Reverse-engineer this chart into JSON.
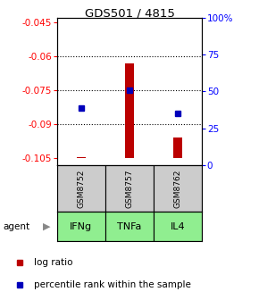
{
  "title": "GDS501 / 4815",
  "categories": [
    "IFNg",
    "TNFa",
    "IL4"
  ],
  "gsm_labels": [
    "GSM8752",
    "GSM8757",
    "GSM8762"
  ],
  "bar_bottoms": [
    -0.105,
    -0.105,
    -0.105
  ],
  "bar_tops": [
    -0.1045,
    -0.063,
    -0.096
  ],
  "blue_y": [
    -0.083,
    -0.075,
    -0.085
  ],
  "ylim_left": [
    -0.108,
    -0.043
  ],
  "ylim_right": [
    0,
    100
  ],
  "left_ticks": [
    -0.045,
    -0.06,
    -0.075,
    -0.09,
    -0.105
  ],
  "right_ticks": [
    100,
    75,
    50,
    25,
    0
  ],
  "right_tick_labels": [
    "100%",
    "75",
    "50",
    "25",
    "0"
  ],
  "grid_lines": [
    -0.06,
    -0.075,
    -0.09
  ],
  "bar_color": "#bb0000",
  "dot_color": "#0000bb",
  "gsm_box_color": "#cccccc",
  "agent_box_color": "#90ee90",
  "legend_red": "log ratio",
  "legend_blue": "percentile rank within the sample"
}
